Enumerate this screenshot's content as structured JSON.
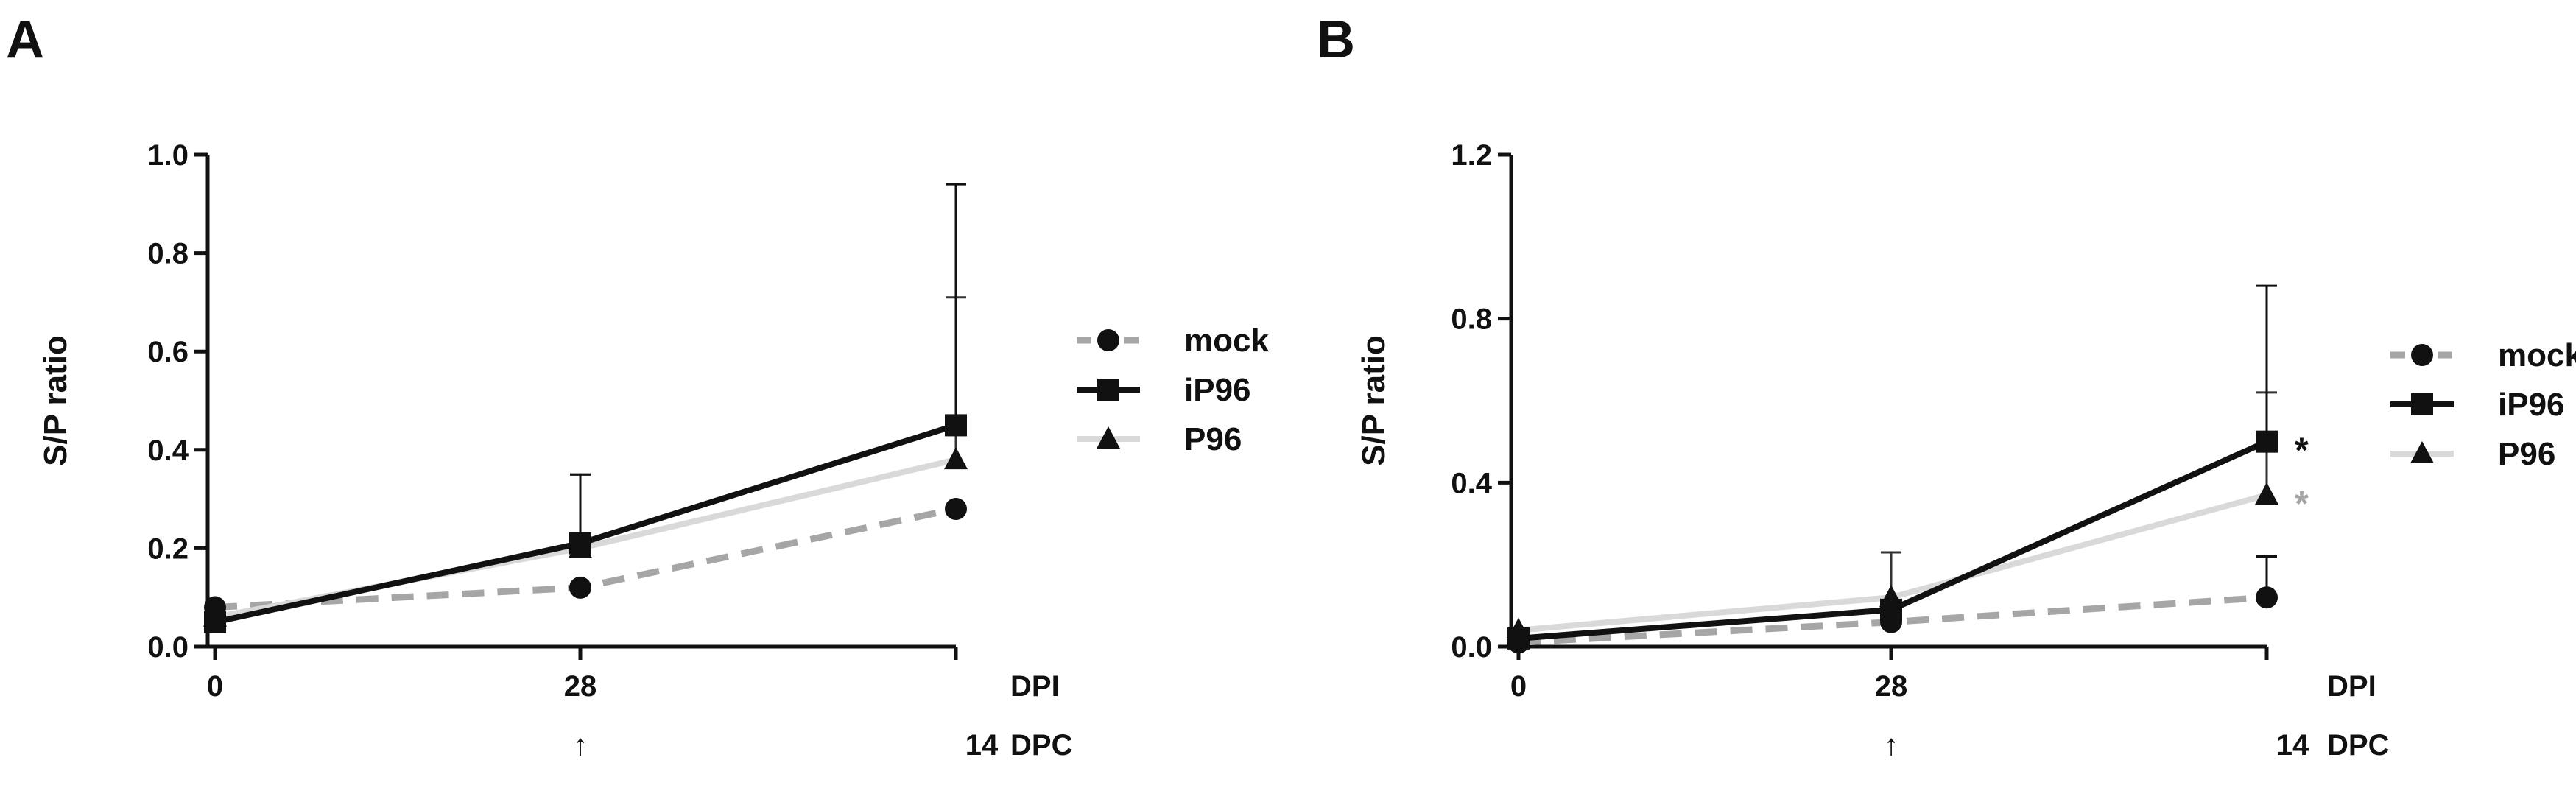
{
  "chart_data": [
    {
      "type": "line",
      "panel": "A",
      "ylabel": "S/P ratio",
      "ylim": [
        0,
        1.0
      ],
      "yticks": [
        "0.0",
        "0.2",
        "0.4",
        "0.6",
        "0.8",
        "1.0"
      ],
      "x_ticks": [
        {
          "dpi": "0",
          "dpc": ""
        },
        {
          "dpi": "28",
          "dpc": "↑"
        },
        {
          "dpi": "",
          "dpc": "14"
        }
      ],
      "x_row_labels": {
        "dpi": "DPI",
        "dpc": "DPC"
      },
      "legend": {
        "position": "right"
      },
      "series": [
        {
          "name": "mock",
          "color": "#a6a6a6",
          "dash": true,
          "marker": "circle",
          "values": [
            0.08,
            0.12,
            0.28
          ],
          "errors": [
            0.0,
            0.0,
            0.0
          ],
          "sig": [
            null,
            null,
            null
          ]
        },
        {
          "name": "iP96",
          "color": "#111111",
          "dash": false,
          "marker": "square",
          "values": [
            0.05,
            0.21,
            0.45
          ],
          "errors": [
            0.0,
            0.14,
            0.49
          ],
          "sig": [
            null,
            null,
            null
          ]
        },
        {
          "name": "P96",
          "color": "#d9d9d9",
          "dash": false,
          "marker": "triangle",
          "values": [
            0.06,
            0.2,
            0.38
          ],
          "errors": [
            0.0,
            0.15,
            0.33
          ],
          "sig": [
            null,
            null,
            null
          ]
        }
      ]
    },
    {
      "type": "line",
      "panel": "B",
      "ylabel": "S/P ratio",
      "ylim": [
        0,
        1.2
      ],
      "yticks": [
        "0.0",
        "0.4",
        "0.8",
        "1.2"
      ],
      "x_ticks": [
        {
          "dpi": "0",
          "dpc": ""
        },
        {
          "dpi": "28",
          "dpc": "↑"
        },
        {
          "dpi": "",
          "dpc": "14"
        }
      ],
      "x_row_labels": {
        "dpi": "DPI",
        "dpc": "DPC"
      },
      "legend": {
        "position": "right"
      },
      "series": [
        {
          "name": "mock",
          "color": "#a6a6a6",
          "dash": true,
          "marker": "circle",
          "values": [
            0.01,
            0.06,
            0.12
          ],
          "errors": [
            0.0,
            0.0,
            0.1
          ],
          "sig": [
            null,
            null,
            null
          ]
        },
        {
          "name": "iP96",
          "color": "#111111",
          "dash": false,
          "marker": "square",
          "values": [
            0.02,
            0.09,
            0.5
          ],
          "errors": [
            0.0,
            0.0,
            0.38
          ],
          "sig": [
            null,
            null,
            "*"
          ]
        },
        {
          "name": "P96",
          "color": "#d9d9d9",
          "dash": false,
          "marker": "triangle",
          "values": [
            0.04,
            0.12,
            0.37
          ],
          "errors": [
            0.0,
            0.11,
            0.25
          ],
          "sig": [
            null,
            null,
            "*"
          ]
        }
      ]
    }
  ]
}
